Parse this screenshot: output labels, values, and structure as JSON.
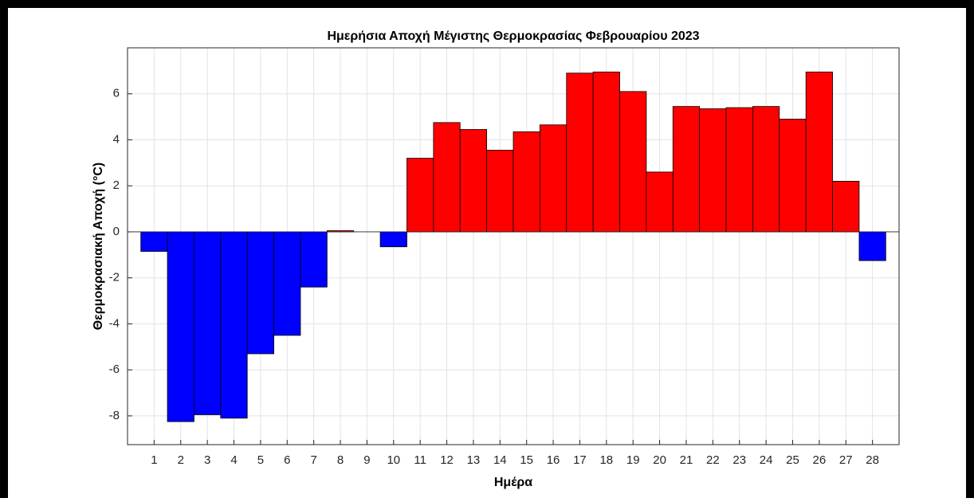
{
  "chart_data": {
    "type": "bar",
    "title": "Ημερήσια Αποχή Μέγιστης Θερμοκρασίας Φεβρουαρίου 2023",
    "x_label": "Ημέρα",
    "y_label": "Θερμοκρασιακή Αποχή (°C)",
    "x": [
      1,
      2,
      3,
      4,
      5,
      6,
      7,
      8,
      9,
      10,
      11,
      12,
      13,
      14,
      15,
      16,
      17,
      18,
      19,
      20,
      21,
      22,
      23,
      24,
      25,
      26,
      27,
      28
    ],
    "values": [
      -0.85,
      -8.25,
      -7.95,
      -8.1,
      -5.3,
      -4.5,
      -2.4,
      0.05,
      0,
      -0.65,
      3.2,
      4.75,
      4.45,
      3.55,
      4.35,
      4.65,
      6.9,
      6.95,
      6.1,
      2.6,
      5.45,
      5.35,
      5.4,
      5.45,
      4.9,
      6.95,
      2.2,
      -1.25
    ],
    "positive_color": "#ff0000",
    "negative_color": "#0000ff",
    "xlim": [
      0,
      29
    ],
    "xticks": [
      1,
      2,
      3,
      4,
      5,
      6,
      7,
      8,
      9,
      10,
      11,
      12,
      13,
      14,
      15,
      16,
      17,
      18,
      19,
      20,
      21,
      22,
      23,
      24,
      25,
      26,
      27,
      28
    ],
    "ylim": [
      -9.25,
      8
    ],
    "yticks": [
      -8,
      -6,
      -4,
      -2,
      0,
      2,
      4,
      6
    ],
    "grid": true
  }
}
